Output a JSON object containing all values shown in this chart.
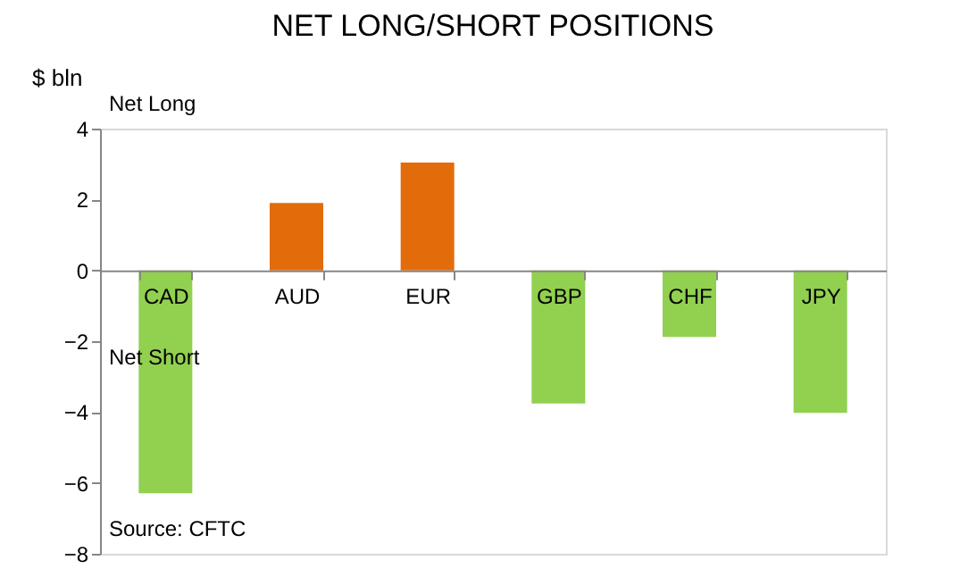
{
  "chart_data": {
    "type": "bar",
    "title": "NET LONG/SHORT POSITIONS",
    "ylabel": "$ bln",
    "categories": [
      "CAD",
      "AUD",
      "EUR",
      "GBP",
      "CHF",
      "JPY"
    ],
    "values": [
      -6.29,
      1.9,
      3.04,
      -3.76,
      -1.88,
      -4.02
    ],
    "colors": [
      "#92d050",
      "#e36c0a",
      "#e36c0a",
      "#92d050",
      "#92d050",
      "#92d050"
    ],
    "ylim": [
      -8,
      4
    ],
    "yticks": [
      -8,
      -6,
      -4,
      -2,
      0,
      2,
      4
    ],
    "grid": false,
    "annotations": [
      "Net Long",
      "Net Short",
      "Source: CFTC"
    ]
  }
}
